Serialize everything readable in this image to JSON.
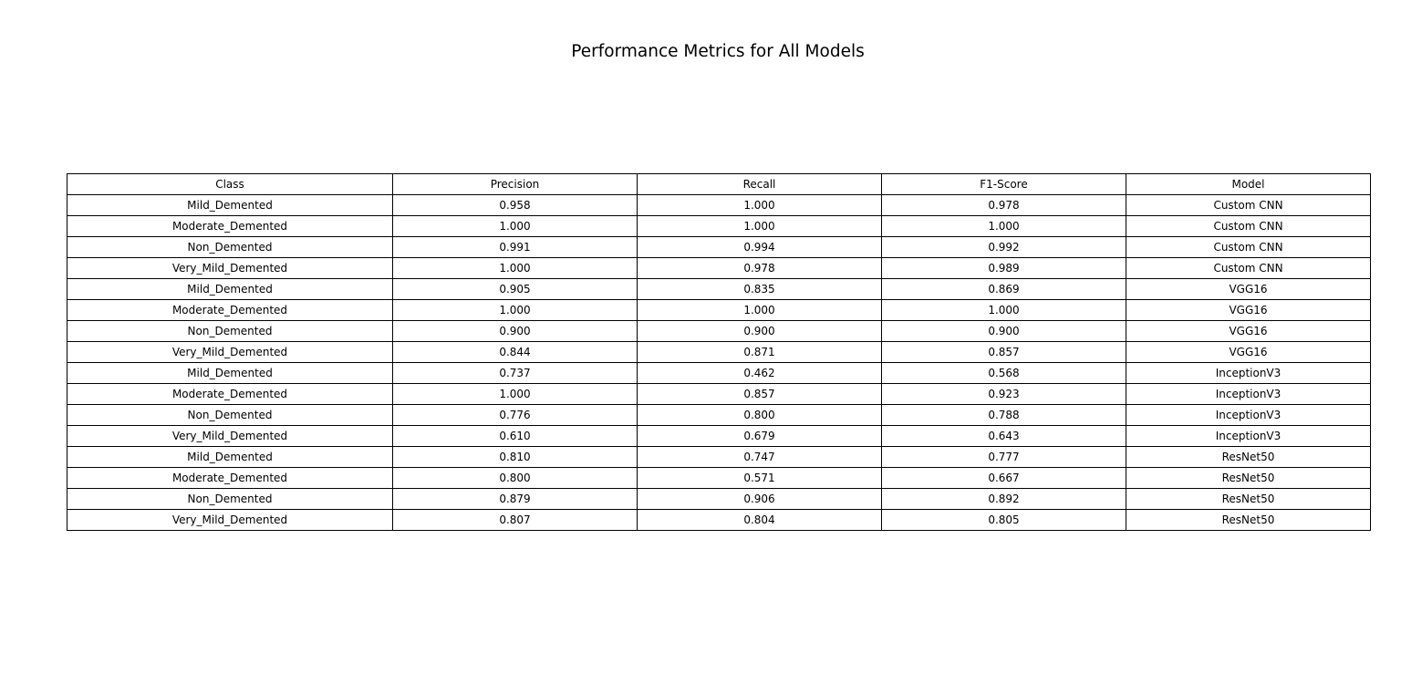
{
  "chart_data": {
    "type": "table",
    "title": "Performance Metrics for All Models",
    "columns": [
      "Class",
      "Precision",
      "Recall",
      "F1-Score",
      "Model"
    ],
    "rows": [
      [
        "Mild_Demented",
        "0.958",
        "1.000",
        "0.978",
        "Custom CNN"
      ],
      [
        "Moderate_Demented",
        "1.000",
        "1.000",
        "1.000",
        "Custom CNN"
      ],
      [
        "Non_Demented",
        "0.991",
        "0.994",
        "0.992",
        "Custom CNN"
      ],
      [
        "Very_Mild_Demented",
        "1.000",
        "0.978",
        "0.989",
        "Custom CNN"
      ],
      [
        "Mild_Demented",
        "0.905",
        "0.835",
        "0.869",
        "VGG16"
      ],
      [
        "Moderate_Demented",
        "1.000",
        "1.000",
        "1.000",
        "VGG16"
      ],
      [
        "Non_Demented",
        "0.900",
        "0.900",
        "0.900",
        "VGG16"
      ],
      [
        "Very_Mild_Demented",
        "0.844",
        "0.871",
        "0.857",
        "VGG16"
      ],
      [
        "Mild_Demented",
        "0.737",
        "0.462",
        "0.568",
        "InceptionV3"
      ],
      [
        "Moderate_Demented",
        "1.000",
        "0.857",
        "0.923",
        "InceptionV3"
      ],
      [
        "Non_Demented",
        "0.776",
        "0.800",
        "0.788",
        "InceptionV3"
      ],
      [
        "Very_Mild_Demented",
        "0.610",
        "0.679",
        "0.643",
        "InceptionV3"
      ],
      [
        "Mild_Demented",
        "0.810",
        "0.747",
        "0.777",
        "ResNet50"
      ],
      [
        "Moderate_Demented",
        "0.800",
        "0.571",
        "0.667",
        "ResNet50"
      ],
      [
        "Non_Demented",
        "0.879",
        "0.906",
        "0.892",
        "ResNet50"
      ],
      [
        "Very_Mild_Demented",
        "0.807",
        "0.804",
        "0.805",
        "ResNet50"
      ]
    ]
  }
}
